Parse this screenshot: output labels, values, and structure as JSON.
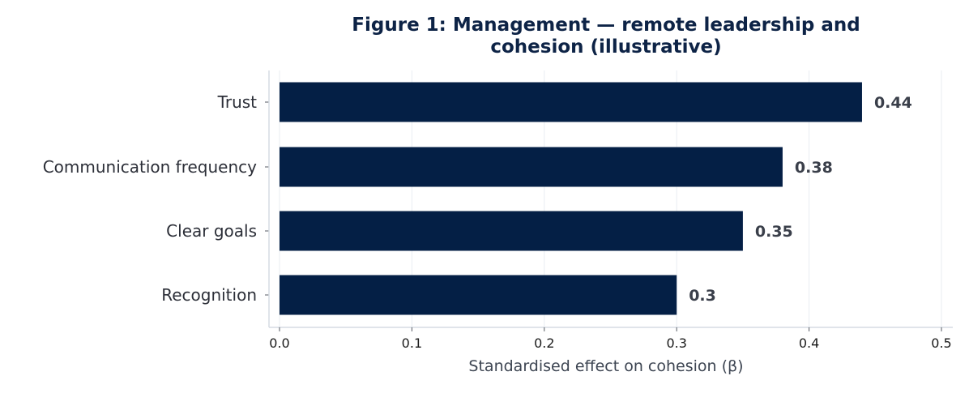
{
  "chart_data": {
    "type": "bar",
    "orientation": "horizontal",
    "title_lines": [
      "Figure 1: Management — remote leadership and",
      "cohesion (illustrative)"
    ],
    "categories": [
      "Trust",
      "Communication frequency",
      "Clear goals",
      "Recognition"
    ],
    "values": [
      0.44,
      0.38,
      0.35,
      0.3
    ],
    "value_labels": [
      "0.44",
      "0.38",
      "0.35",
      "0.3"
    ],
    "xlabel": "Standardised effect on cohesion (β)",
    "ylabel": "",
    "xlim": [
      0,
      0.5
    ],
    "xticks": [
      0,
      0.1,
      0.2,
      0.3,
      0.4,
      0.5
    ],
    "xtick_labels": [
      "0.0",
      "0.1",
      "0.2",
      "0.3",
      "0.4",
      "0.5"
    ],
    "grid": "vertical",
    "legend": "none",
    "colors": {
      "bar": "#041f45",
      "title": "#0d2346",
      "grid": "#e9edf2",
      "axis": "#d5dbe3"
    }
  }
}
